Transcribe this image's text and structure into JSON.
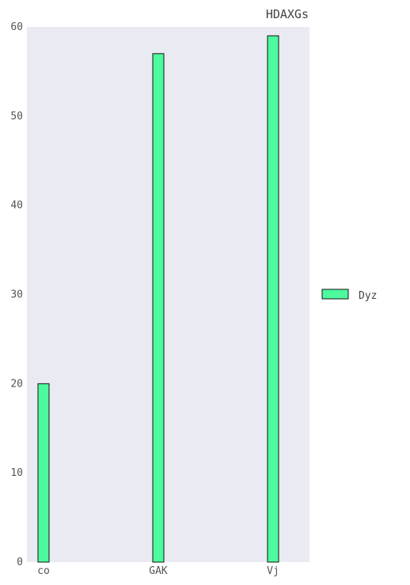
{
  "chart_data": {
    "type": "bar",
    "title": "HDAXGs",
    "xlabel": "",
    "ylabel": "",
    "categories": [
      "co",
      "GAK",
      "Vj"
    ],
    "series": [
      {
        "name": "Dyz",
        "values": [
          20,
          57,
          59
        ]
      }
    ],
    "ylim": [
      0,
      60
    ],
    "yticks": [
      0,
      10,
      20,
      30,
      40,
      50,
      60
    ],
    "grid": false,
    "legend_position": "right",
    "colors": {
      "plot_background": "#eaeaf2",
      "bar_fill": "#4dfa9d",
      "bar_stroke": "#111111"
    }
  }
}
